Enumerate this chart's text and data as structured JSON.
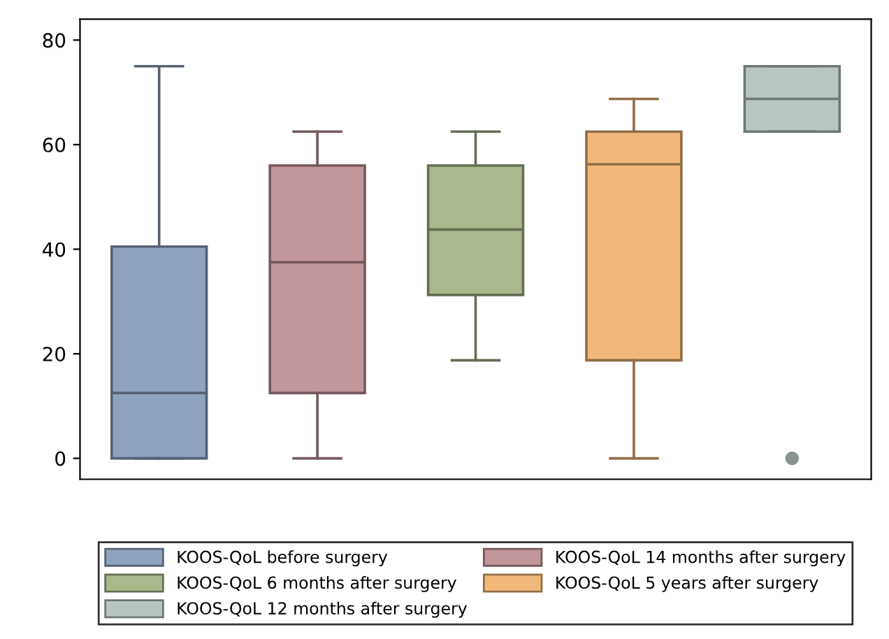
{
  "chart_data": {
    "type": "box",
    "categories": [
      null,
      null,
      null,
      null,
      null
    ],
    "series": [
      {
        "name": "KOOS-QoL before surgery",
        "color": "#8fa3bf",
        "boxes": [
          {
            "low": 0,
            "q1": 0,
            "median": 12.5,
            "q3": 40.5,
            "high": 75
          },
          null,
          null,
          null,
          null
        ]
      },
      {
        "name": "KOOS-QoL 14 months after surgery",
        "color": "#c3969b",
        "boxes": [
          null,
          {
            "low": 0,
            "q1": 12.5,
            "median": 37.5,
            "q3": 56,
            "high": 62.5
          },
          null,
          null,
          null
        ]
      },
      {
        "name": "KOOS-QoL 6 months after surgery",
        "color": "#a9b98c",
        "boxes": [
          null,
          null,
          {
            "low": 18.75,
            "q1": 31.25,
            "median": 43.75,
            "q3": 56,
            "high": 62.5
          },
          null,
          null
        ]
      },
      {
        "name": "KOOS-QoL 5 years after surgery",
        "color": "#f2b87a",
        "boxes": [
          null,
          null,
          null,
          {
            "low": 0,
            "q1": 18.75,
            "median": 56.25,
            "q3": 62.5,
            "high": 68.75
          },
          null
        ]
      },
      {
        "name": "KOOS-QoL 12 months after surgery",
        "color": "#b8c6c1",
        "boxes": [
          null,
          null,
          null,
          null,
          {
            "low": 62.5,
            "q1": 62.5,
            "median": 68.75,
            "q3": 75,
            "high": 75,
            "outliers": [
              0
            ]
          }
        ]
      }
    ],
    "ylim": [
      -4,
      84
    ],
    "yticks": [
      0,
      20,
      40,
      60,
      80
    ],
    "grid": false,
    "legend": "bottom"
  }
}
